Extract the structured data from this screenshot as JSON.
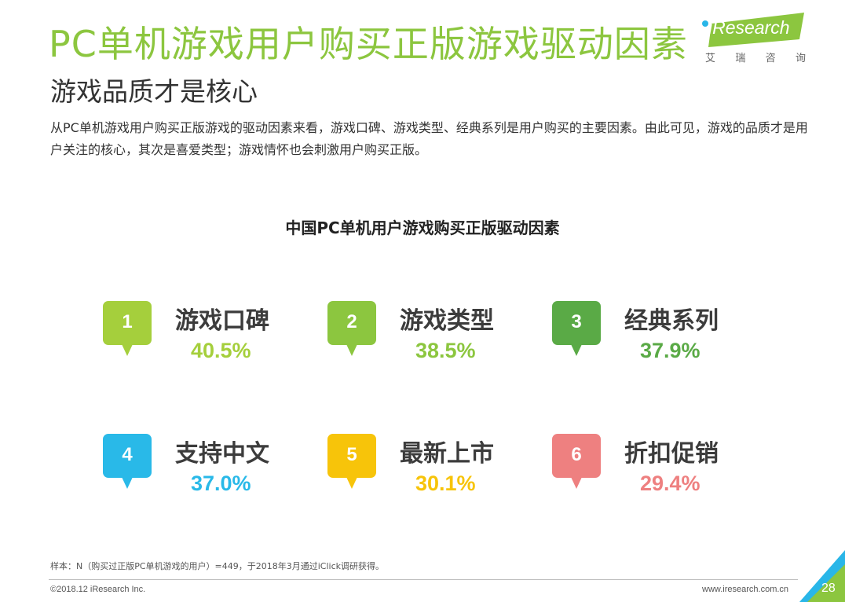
{
  "header": {
    "title": "PC单机游戏用户购买正版游戏驱动因素",
    "subtitle": "游戏品质才是核心",
    "description": "从PC单机游戏用户购买正版游戏的驱动因素来看，游戏口碑、游戏类型、经典系列是用户购买的主要因素。由此可见，游戏的品质才是用户关注的核心，其次是喜爱类型；游戏情怀也会刺激用户购买正版。"
  },
  "logo": {
    "text": "iResearch",
    "sub": [
      "艾",
      "瑞",
      "咨",
      "询"
    ],
    "brand_color": "#8cc63f"
  },
  "chart_data": {
    "type": "table",
    "title": "中国PC单机用户游戏购买正版驱动因素",
    "unit": "%",
    "items": [
      {
        "rank": "1",
        "name": "游戏口碑",
        "value": 40.5,
        "display": "40.5%",
        "color": "#a5cf3c"
      },
      {
        "rank": "2",
        "name": "游戏类型",
        "value": 38.5,
        "display": "38.5%",
        "color": "#8cc63f"
      },
      {
        "rank": "3",
        "name": "经典系列",
        "value": 37.9,
        "display": "37.9%",
        "color": "#5aaa46"
      },
      {
        "rank": "4",
        "name": "支持中文",
        "value": 37.0,
        "display": "37.0%",
        "color": "#29b9e8"
      },
      {
        "rank": "5",
        "name": "最新上市",
        "value": 30.1,
        "display": "30.1%",
        "color": "#f7c40a"
      },
      {
        "rank": "6",
        "name": "折扣促销",
        "value": 29.4,
        "display": "29.4%",
        "color": "#ee8080"
      }
    ]
  },
  "footer": {
    "note": "样本：N（购买过正版PC单机游戏的用户）=449，于2018年3月通过iClick调研获得。",
    "copyright": "©2018.12 iResearch Inc.",
    "site": "www.iresearch.com.cn",
    "page": "28"
  }
}
